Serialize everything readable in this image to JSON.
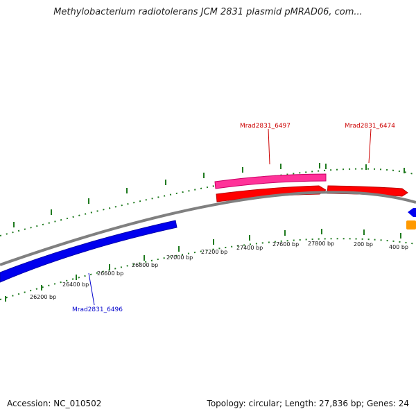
{
  "title": "Methylobacterium radiotolerans JCM 2831 plasmid pMRAD06, com...",
  "footer": {
    "accession": "Accession: NC_010502",
    "summary": "Topology: circular; Length: 27,836 bp; Genes: 24"
  },
  "colors": {
    "backbone": "#808080",
    "tick": "#1f7a1f",
    "forward_gene": "#ff0000",
    "forward_gene_alt": "#ff3399",
    "reverse_gene": "#0000ff",
    "other_gene": "#ff9900"
  },
  "ticks": [
    {
      "label": "26200 bp"
    },
    {
      "label": "26400 bp"
    },
    {
      "label": "26600 bp"
    },
    {
      "label": "26800 bp"
    },
    {
      "label": "27000 bp"
    },
    {
      "label": "27200 bp"
    },
    {
      "label": "27400 bp"
    },
    {
      "label": "27600 bp"
    },
    {
      "label": "27800 bp"
    },
    {
      "label": "200 bp"
    },
    {
      "label": "400 bp"
    }
  ],
  "gene_labels": [
    {
      "name": "Mrad2831_6497",
      "color": "#cc0000"
    },
    {
      "name": "Mrad2831_6474",
      "color": "#cc0000"
    },
    {
      "name": "Mrad2831_6496",
      "color": "#0000cc"
    }
  ]
}
